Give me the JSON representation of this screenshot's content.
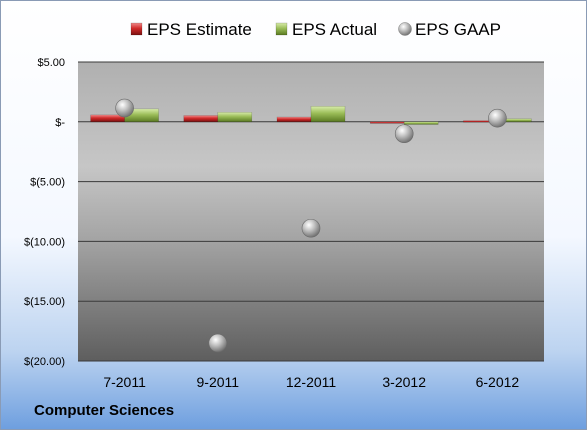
{
  "company_label": "Computer Sciences",
  "chart_data": {
    "type": "bar",
    "categories": [
      "7-2011",
      "9-2011",
      "12-2011",
      "3-2012",
      "6-2012"
    ],
    "series": [
      {
        "name": "EPS Estimate",
        "kind": "bar",
        "color": "#c0282d",
        "values": [
          0.58,
          0.53,
          0.4,
          -0.1,
          0.1
        ]
      },
      {
        "name": "EPS Actual",
        "kind": "bar",
        "color": "#8cad44",
        "values": [
          1.08,
          0.8,
          1.3,
          -0.22,
          0.26
        ]
      },
      {
        "name": "EPS GAAP",
        "kind": "scatter",
        "color": "#a8a8a8",
        "values": [
          1.15,
          -18.5,
          -8.9,
          -1.0,
          0.3
        ]
      }
    ],
    "yticks": [
      {
        "value": 5,
        "label": "$5.00"
      },
      {
        "value": 0,
        "label": "$-"
      },
      {
        "value": -5,
        "label": "$(5.00)"
      },
      {
        "value": -10,
        "label": "$(10.00)"
      },
      {
        "value": -15,
        "label": "$(15.00)"
      },
      {
        "value": -20,
        "label": "$(20.00)"
      }
    ],
    "ylim": [
      -20,
      5
    ],
    "grid": true,
    "legend_position": "top"
  }
}
